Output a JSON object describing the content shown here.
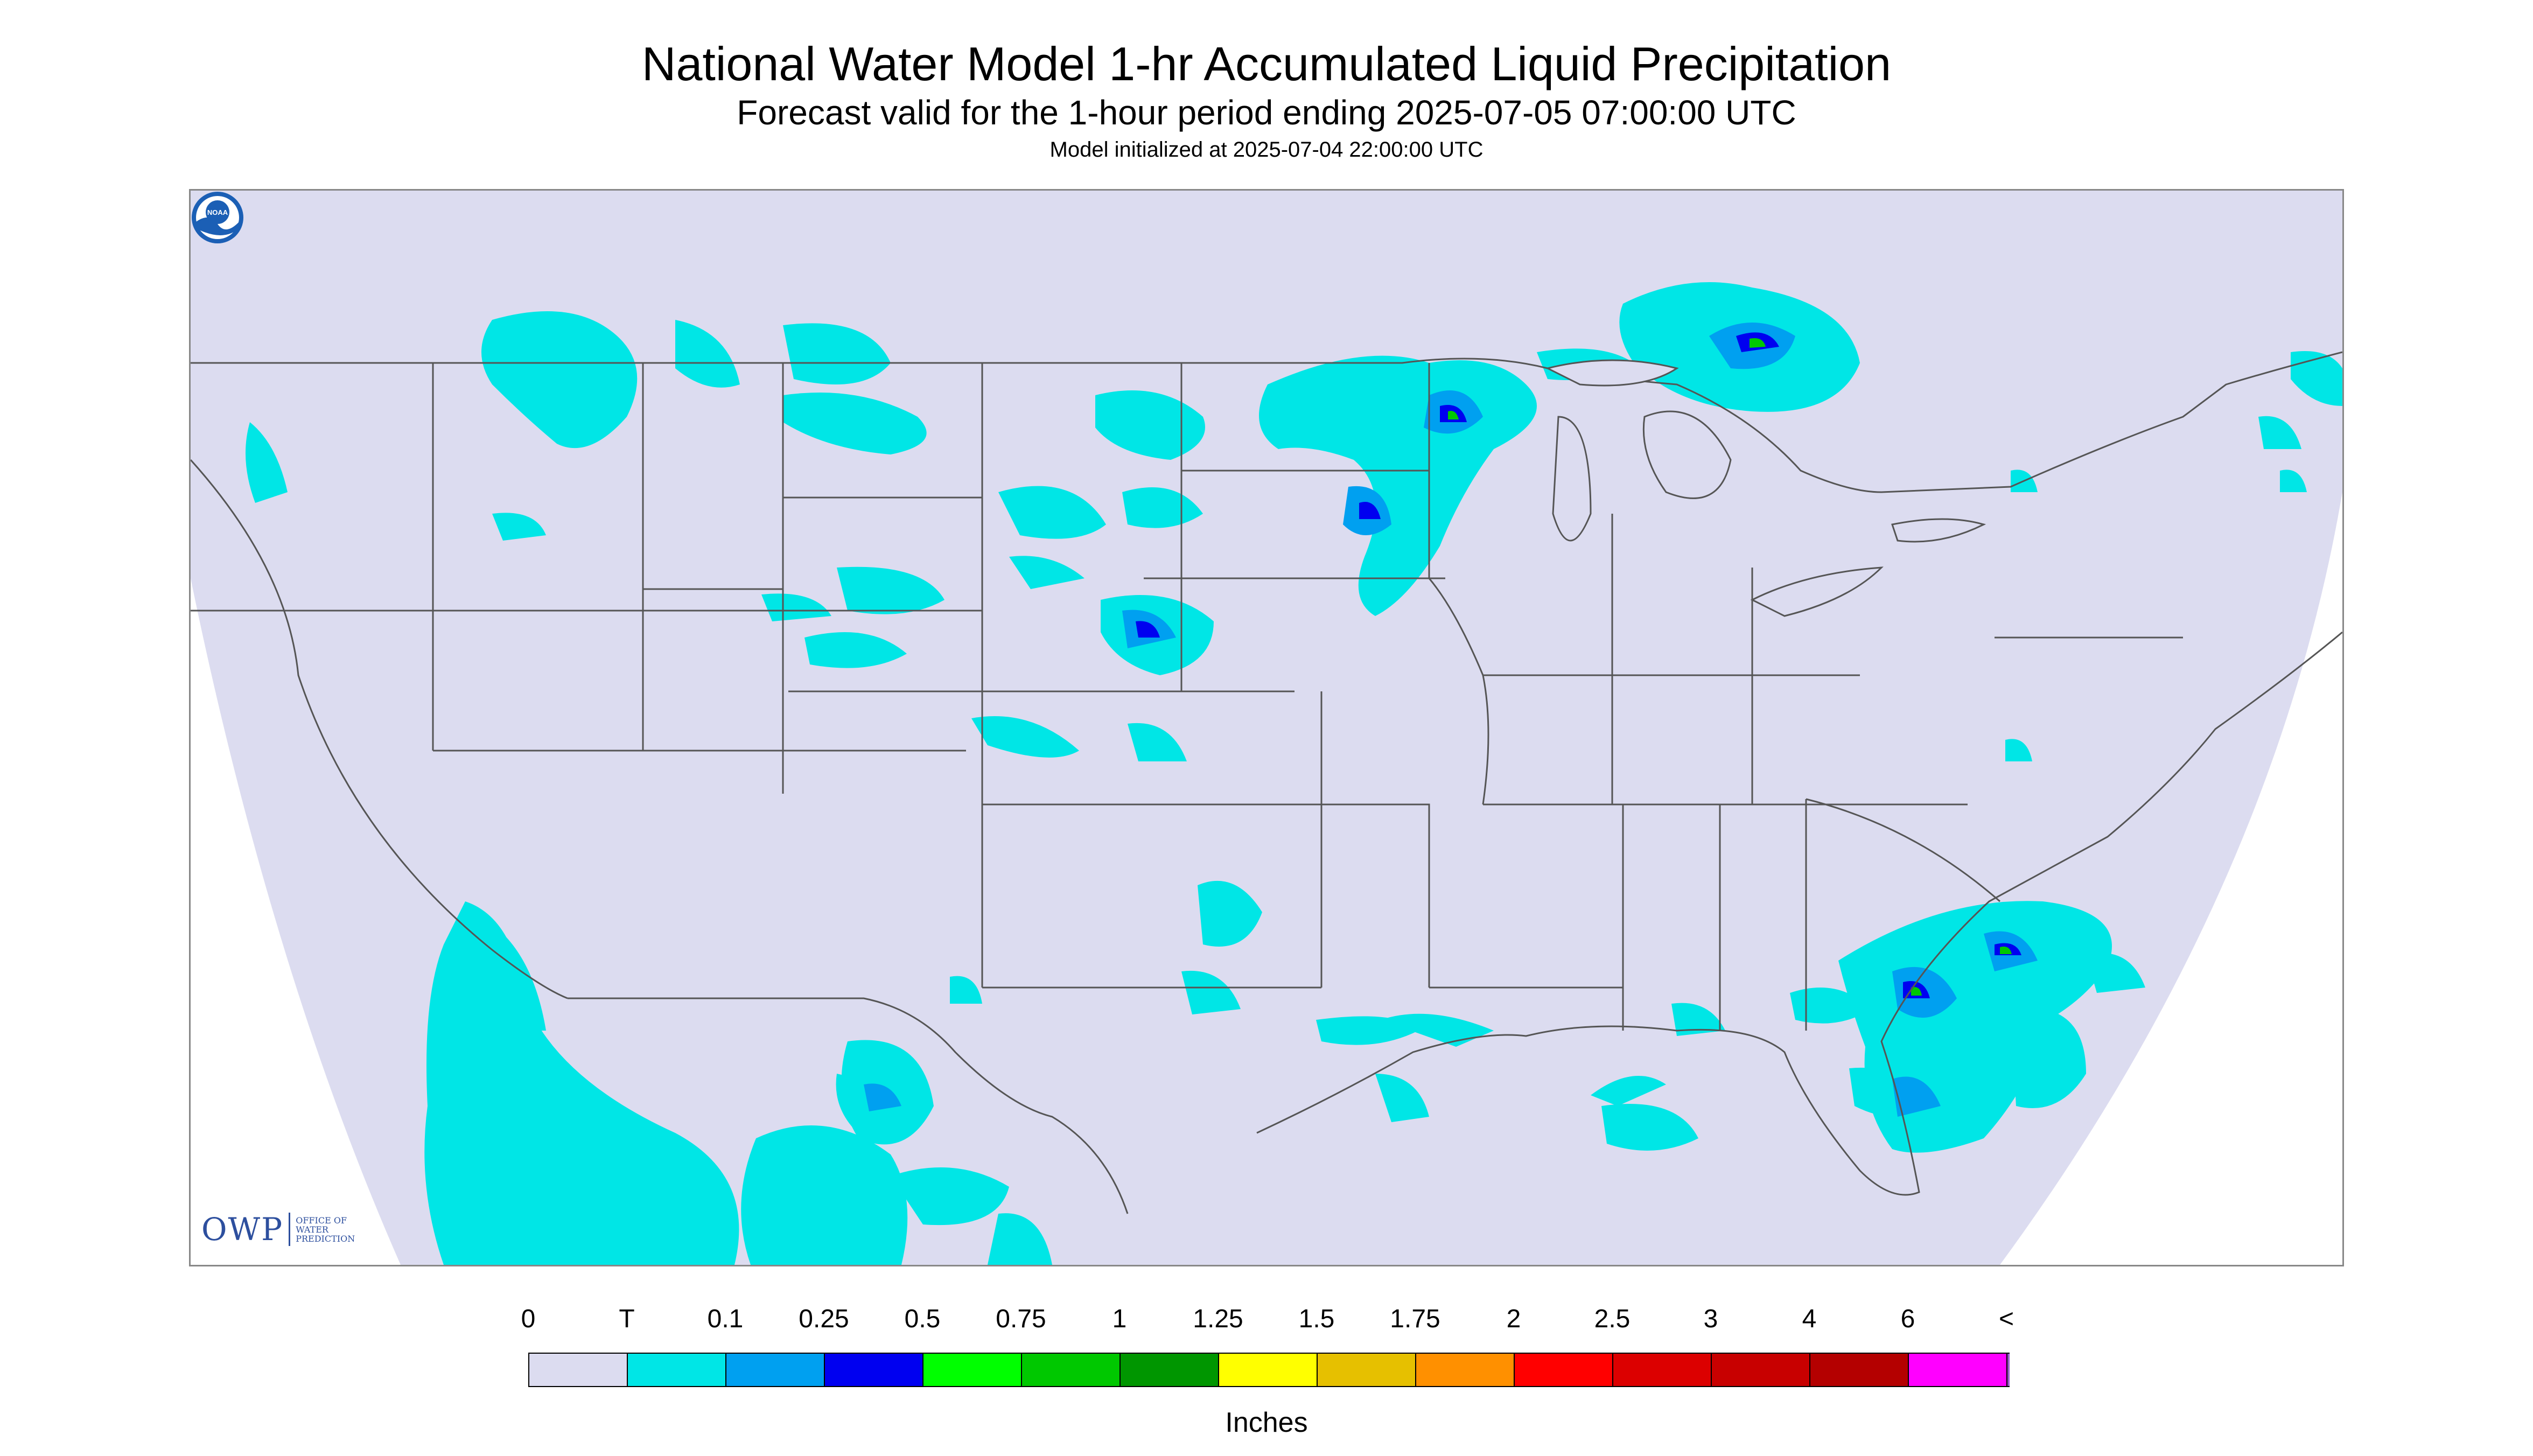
{
  "header": {
    "title": "National Water Model 1-hr Accumulated Liquid Precipitation",
    "subtitle": "Forecast valid for the 1-hour period ending 2025-07-05 07:00:00 UTC",
    "init_line": "Model initialized at 2025-07-04 22:00:00 UTC"
  },
  "logos": {
    "owp_mark": "OWP",
    "owp_text": [
      "OFFICE OF",
      "WATER",
      "PREDICTION"
    ],
    "noaa_text": "NOAA"
  },
  "legend": {
    "labels": [
      "0",
      "T",
      "0.1",
      "0.25",
      "0.5",
      "0.75",
      "1",
      "1.25",
      "1.5",
      "1.75",
      "2",
      "2.5",
      "3",
      "4",
      "6",
      "<"
    ],
    "colors": [
      "#dcdcf0",
      "#00e6e6",
      "#00a0f0",
      "#0000f0",
      "#00ff00",
      "#00c800",
      "#009600",
      "#ffff00",
      "#e6c000",
      "#ff9000",
      "#ff0000",
      "#dc0000",
      "#c80000",
      "#b40000",
      "#ff00ff",
      "#9a58cc"
    ],
    "units": "Inches"
  },
  "colors": {
    "background": "#dcdcf0",
    "trace": "#00e6e6",
    "outline": "#555555"
  }
}
